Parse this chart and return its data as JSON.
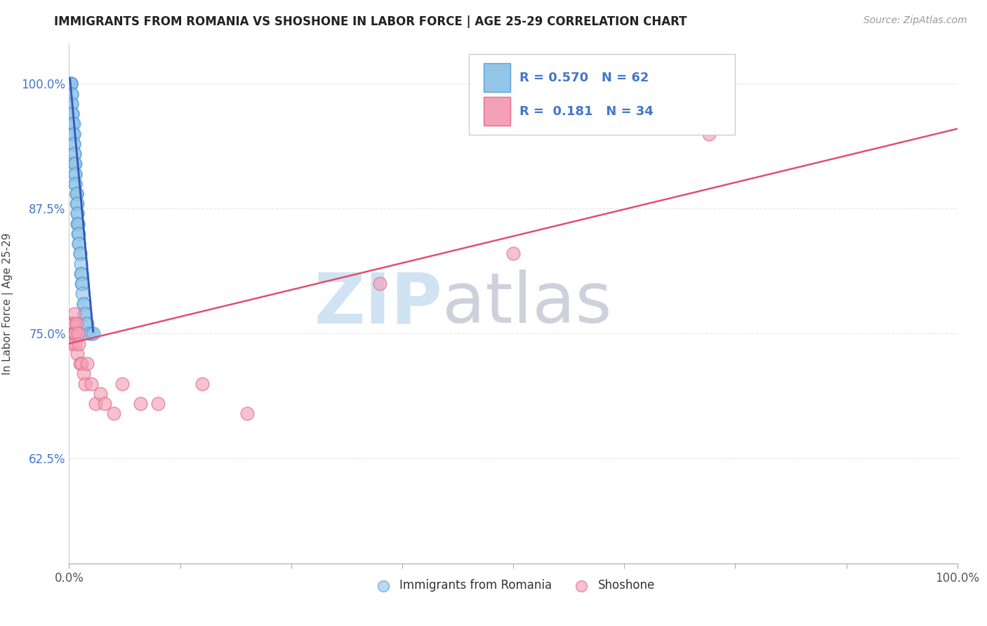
{
  "title": "IMMIGRANTS FROM ROMANIA VS SHOSHONE IN LABOR FORCE | AGE 25-29 CORRELATION CHART",
  "source": "Source: ZipAtlas.com",
  "ylabel": "In Labor Force | Age 25-29",
  "xlim": [
    0.0,
    1.0
  ],
  "ylim": [
    0.52,
    1.04
  ],
  "y_ticks": [
    0.625,
    0.75,
    0.875,
    1.0
  ],
  "y_tick_labels": [
    "62.5%",
    "75.0%",
    "87.5%",
    "100.0%"
  ],
  "romania_color": "#92C5E8",
  "romania_edge_color": "#5B9FD4",
  "shoshone_color": "#F4A0B8",
  "shoshone_edge_color": "#E07090",
  "romania_R": 0.57,
  "romania_N": 62,
  "shoshone_R": 0.181,
  "shoshone_N": 34,
  "legend_color": "#4477CC",
  "regression_blue": "#3355BB",
  "regression_pink": "#E05070",
  "romania_x": [
    0.001,
    0.001,
    0.001,
    0.002,
    0.002,
    0.002,
    0.002,
    0.003,
    0.003,
    0.003,
    0.003,
    0.003,
    0.004,
    0.004,
    0.004,
    0.004,
    0.004,
    0.005,
    0.005,
    0.005,
    0.005,
    0.005,
    0.006,
    0.006,
    0.006,
    0.006,
    0.007,
    0.007,
    0.007,
    0.007,
    0.007,
    0.008,
    0.008,
    0.008,
    0.008,
    0.009,
    0.009,
    0.009,
    0.009,
    0.01,
    0.01,
    0.01,
    0.011,
    0.011,
    0.011,
    0.012,
    0.012,
    0.013,
    0.013,
    0.014,
    0.014,
    0.015,
    0.015,
    0.016,
    0.016,
    0.017,
    0.018,
    0.019,
    0.02,
    0.022,
    0.025,
    0.027
  ],
  "romania_y": [
    1.0,
    1.0,
    1.0,
    1.0,
    1.0,
    1.0,
    1.0,
    0.98,
    0.99,
    0.99,
    0.98,
    0.97,
    0.97,
    0.97,
    0.96,
    0.96,
    0.95,
    0.96,
    0.95,
    0.94,
    0.95,
    0.94,
    0.93,
    0.93,
    0.92,
    0.92,
    0.92,
    0.91,
    0.91,
    0.9,
    0.9,
    0.89,
    0.89,
    0.89,
    0.88,
    0.88,
    0.87,
    0.87,
    0.86,
    0.86,
    0.86,
    0.85,
    0.85,
    0.84,
    0.84,
    0.83,
    0.83,
    0.82,
    0.81,
    0.81,
    0.8,
    0.8,
    0.79,
    0.78,
    0.78,
    0.77,
    0.77,
    0.76,
    0.76,
    0.75,
    0.75,
    0.75
  ],
  "shoshone_x": [
    0.001,
    0.002,
    0.003,
    0.003,
    0.004,
    0.004,
    0.005,
    0.005,
    0.006,
    0.006,
    0.007,
    0.007,
    0.008,
    0.009,
    0.01,
    0.011,
    0.012,
    0.014,
    0.016,
    0.018,
    0.02,
    0.025,
    0.03,
    0.035,
    0.04,
    0.05,
    0.06,
    0.08,
    0.1,
    0.15,
    0.2,
    0.35,
    0.5,
    0.72
  ],
  "shoshone_y": [
    0.76,
    0.75,
    0.74,
    0.76,
    0.76,
    0.76,
    0.76,
    0.75,
    0.77,
    0.75,
    0.74,
    0.75,
    0.76,
    0.73,
    0.75,
    0.74,
    0.72,
    0.72,
    0.71,
    0.7,
    0.72,
    0.7,
    0.68,
    0.69,
    0.68,
    0.67,
    0.7,
    0.68,
    0.68,
    0.7,
    0.67,
    0.8,
    0.83,
    0.95
  ],
  "blue_line_x": [
    0.001,
    0.027
  ],
  "blue_line_y": [
    1.005,
    0.752
  ],
  "pink_line_x": [
    0.0,
    1.0
  ],
  "pink_line_y": [
    0.74,
    0.955
  ],
  "watermark_zip_color": "#C8DFF0",
  "watermark_atlas_color": "#C8C8D8"
}
